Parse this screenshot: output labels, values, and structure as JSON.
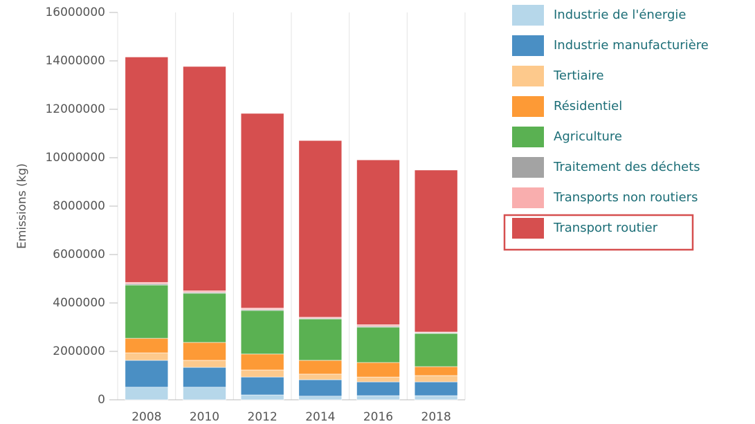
{
  "chart_data": {
    "type": "stacked_bar",
    "y_label": "Emissions (kg)",
    "categories": [
      "2008",
      "2010",
      "2012",
      "2014",
      "2016",
      "2018"
    ],
    "series": [
      {
        "name": "Industrie de l'énergie",
        "color": "#b6d7ea",
        "values": [
          520000,
          520000,
          200000,
          150000,
          170000,
          170000
        ]
      },
      {
        "name": "Industrie manufacturière",
        "color": "#4a8fc4",
        "values": [
          1110000,
          820000,
          740000,
          680000,
          570000,
          570000
        ]
      },
      {
        "name": "Tertiaire",
        "color": "#fdc98c",
        "values": [
          310000,
          290000,
          290000,
          230000,
          200000,
          260000
        ]
      },
      {
        "name": "Résidentiel",
        "color": "#fd9a36",
        "values": [
          600000,
          740000,
          660000,
          570000,
          600000,
          370000
        ]
      },
      {
        "name": "Agriculture",
        "color": "#5ab152",
        "values": [
          2200000,
          2030000,
          1800000,
          1710000,
          1460000,
          1370000
        ]
      },
      {
        "name": "Traitement des déchets",
        "color": "#a3a3a3",
        "values": [
          50000,
          40000,
          40000,
          30000,
          40000,
          30000
        ]
      },
      {
        "name": "Transports non routiers",
        "color": "#f9aeae",
        "values": [
          60000,
          60000,
          60000,
          40000,
          60000,
          30000
        ]
      },
      {
        "name": "Transport routier",
        "color": "#d64f4f",
        "values": [
          9310000,
          9270000,
          8040000,
          7300000,
          6810000,
          6690000
        ]
      }
    ],
    "ylim": [
      0,
      16000000
    ],
    "yticks": [
      0,
      2000000,
      4000000,
      6000000,
      8000000,
      10000000,
      12000000,
      14000000,
      16000000
    ],
    "legend": "right"
  }
}
